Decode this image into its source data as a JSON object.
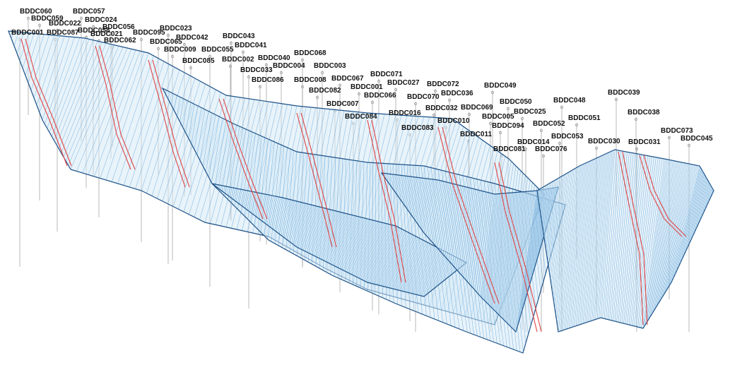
{
  "colors": {
    "background": "#ffffff",
    "mesh_fill": "#d6e9f6",
    "mesh_line": "#3d8fd0",
    "mesh_dark": "#1c4f84",
    "horizon": "#e04545",
    "well_line": "#9a9a9a",
    "label": "#111111"
  },
  "wells": [
    {
      "name": "BDDC060"
    },
    {
      "name": "BDDC057"
    },
    {
      "name": "BDDC024"
    },
    {
      "name": "BDDC059"
    },
    {
      "name": "BDDC022"
    },
    {
      "name": "BDDC001"
    },
    {
      "name": "BDDC087"
    },
    {
      "name": "BDDC056"
    },
    {
      "name": "BDDC058"
    },
    {
      "name": "BDDC021"
    },
    {
      "name": "BDDC095"
    },
    {
      "name": "BDDC023"
    },
    {
      "name": "BDDC062"
    },
    {
      "name": "BDDC065"
    },
    {
      "name": "BDDC042"
    },
    {
      "name": "BDDC043"
    },
    {
      "name": "BDDC009"
    },
    {
      "name": "BDDC055"
    },
    {
      "name": "BDDC041"
    },
    {
      "name": "BDDC085"
    },
    {
      "name": "BDDC002"
    },
    {
      "name": "BDDC040"
    },
    {
      "name": "BDDC068"
    },
    {
      "name": "BDDC033"
    },
    {
      "name": "BDDC004"
    },
    {
      "name": "BDDC003"
    },
    {
      "name": "BDDC086"
    },
    {
      "name": "BDDC008"
    },
    {
      "name": "BDDC067"
    },
    {
      "name": "BDDC071"
    },
    {
      "name": "BDDC082"
    },
    {
      "name": "BDDC027"
    },
    {
      "name": "BDDC001"
    },
    {
      "name": "BDDC072"
    },
    {
      "name": "BDDC066"
    },
    {
      "name": "BDDC070"
    },
    {
      "name": "BDDC036"
    },
    {
      "name": "BDDC049"
    },
    {
      "name": "BDDC007"
    },
    {
      "name": "BDDC032"
    },
    {
      "name": "BDDC050"
    },
    {
      "name": "BDDC048"
    },
    {
      "name": "BDDC039"
    },
    {
      "name": "BDDC084"
    },
    {
      "name": "BDDC016"
    },
    {
      "name": "BDDC069"
    },
    {
      "name": "BDDC025"
    },
    {
      "name": "BDDC005"
    },
    {
      "name": "BDDC010"
    },
    {
      "name": "BDDC051"
    },
    {
      "name": "BDDC038"
    },
    {
      "name": "BDDC083"
    },
    {
      "name": "BDDC094"
    },
    {
      "name": "BDDC052"
    },
    {
      "name": "BDDC011"
    },
    {
      "name": "BDDC053"
    },
    {
      "name": "BDDC073"
    },
    {
      "name": "BDDC014"
    },
    {
      "name": "BDDC031"
    },
    {
      "name": "BDDC045"
    },
    {
      "name": "BDDC081"
    },
    {
      "name": "BDDC076"
    },
    {
      "name": "BDDC030"
    }
  ]
}
